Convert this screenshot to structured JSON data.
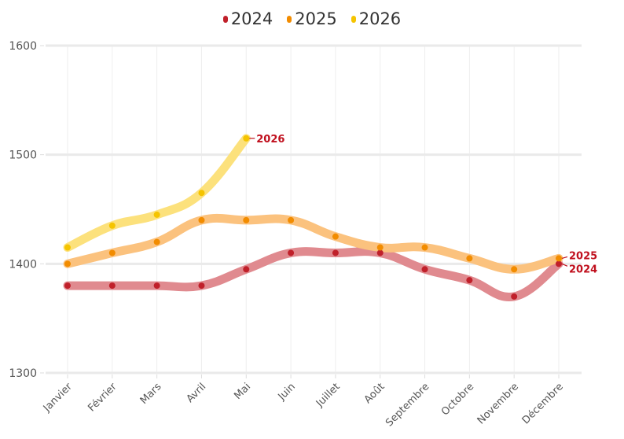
{
  "chart_data": {
    "type": "line",
    "title": "",
    "xlabel": "",
    "ylabel": "",
    "categories": [
      "Janvier",
      "Février",
      "Mars",
      "Avril",
      "Mai",
      "Juin",
      "Juillet",
      "Août",
      "Septembre",
      "Octobre",
      "Novembre",
      "Décembre"
    ],
    "ylim": [
      1300,
      1600
    ],
    "yticks": [
      1300,
      1400,
      1500,
      1600
    ],
    "grid": true,
    "legend_position": "top-center",
    "series": [
      {
        "name": "2024",
        "color": "#c0202a",
        "line_color": "#e08a8f",
        "values": [
          1380,
          1380,
          1380,
          1380,
          1395,
          1410,
          1410,
          1410,
          1395,
          1385,
          1370,
          1400
        ],
        "end_label": "2024"
      },
      {
        "name": "2025",
        "color": "#f28c00",
        "line_color": "#fbc27e",
        "values": [
          1400,
          1410,
          1420,
          1440,
          1440,
          1440,
          1425,
          1415,
          1415,
          1405,
          1395,
          1405
        ],
        "end_label": "2025"
      },
      {
        "name": "2026",
        "color": "#f5c400",
        "line_color": "#fce17c",
        "values": [
          1415,
          1435,
          1445,
          1465,
          1515,
          null,
          null,
          null,
          null,
          null,
          null,
          null
        ],
        "end_label": "2026"
      }
    ]
  }
}
